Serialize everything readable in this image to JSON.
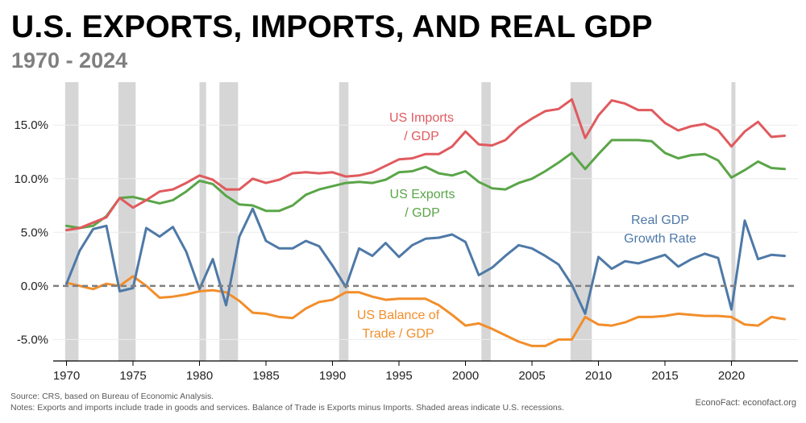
{
  "title": "U.S. EXPORTS, IMPORTS, AND REAL GDP",
  "subtitle": "1970 - 2024",
  "footer": {
    "source": "Source: CRS, based on Bureau of Economic Analysis.",
    "notes": "Notes: Exports and imports include trade in goods and services. Balance of Trade is Exports minus Imports. Shaded areas indicate U.S. recessions.",
    "credit": "EconoFact:  econofact.org"
  },
  "colors": {
    "imports": "#e05a5e",
    "exports": "#5aa548",
    "gdp": "#4e79a7",
    "balance": "#f28e2b",
    "recession": "#d6d6d6",
    "zero_line": "#7f7f7f"
  },
  "chart_data": {
    "type": "line",
    "xlim": [
      1969,
      2025
    ],
    "ylim": [
      -7,
      19
    ],
    "x_ticks": [
      1970,
      1975,
      1980,
      1985,
      1990,
      1995,
      2000,
      2005,
      2010,
      2015,
      2020
    ],
    "x_tick_labels": [
      "1970",
      "1975",
      "1980",
      "1985",
      "1990",
      "1995",
      "2000",
      "2005",
      "2010",
      "2015",
      "2020"
    ],
    "y_ticks": [
      -5,
      0,
      5,
      10,
      15
    ],
    "y_tick_labels": [
      "-5.0%",
      "0.0%",
      "5.0%",
      "10.0%",
      "15.0%"
    ],
    "grid": true,
    "recessions": [
      [
        1969.9,
        1970.9
      ],
      [
        1973.9,
        1975.2
      ],
      [
        1980.0,
        1980.5
      ],
      [
        1981.5,
        1982.9
      ],
      [
        1990.5,
        1991.2
      ],
      [
        2001.2,
        2001.9
      ],
      [
        2007.9,
        2009.5
      ],
      [
        2020.0,
        2020.3
      ]
    ],
    "x": [
      1970,
      1971,
      1972,
      1973,
      1974,
      1975,
      1976,
      1977,
      1978,
      1979,
      1980,
      1981,
      1982,
      1983,
      1984,
      1985,
      1986,
      1987,
      1988,
      1989,
      1990,
      1991,
      1992,
      1993,
      1994,
      1995,
      1996,
      1997,
      1998,
      1999,
      2000,
      2001,
      2002,
      2003,
      2004,
      2005,
      2006,
      2007,
      2008,
      2009,
      2010,
      2011,
      2012,
      2013,
      2014,
      2015,
      2016,
      2017,
      2018,
      2019,
      2020,
      2021,
      2022,
      2023,
      2024
    ],
    "series": [
      {
        "key": "imports",
        "label_lines": [
          "US Imports",
          "/ GDP"
        ],
        "values": [
          5.2,
          5.4,
          5.9,
          6.4,
          8.2,
          7.3,
          8.0,
          8.8,
          9.0,
          9.6,
          10.3,
          9.9,
          9.0,
          9.0,
          10.0,
          9.6,
          9.9,
          10.5,
          10.6,
          10.5,
          10.6,
          10.2,
          10.3,
          10.6,
          11.2,
          11.8,
          11.9,
          12.3,
          12.3,
          13.0,
          14.4,
          13.2,
          13.1,
          13.6,
          14.8,
          15.6,
          16.3,
          16.5,
          17.4,
          13.8,
          15.9,
          17.3,
          17.0,
          16.4,
          16.4,
          15.2,
          14.5,
          14.9,
          15.1,
          14.5,
          13.0,
          14.4,
          15.3,
          13.9,
          14.0
        ]
      },
      {
        "key": "exports",
        "label_lines": [
          "US Exports",
          "/ GDP"
        ],
        "values": [
          5.6,
          5.4,
          5.6,
          6.5,
          8.2,
          8.3,
          8.0,
          7.7,
          8.0,
          8.8,
          9.8,
          9.5,
          8.4,
          7.6,
          7.5,
          7.0,
          7.0,
          7.5,
          8.5,
          9.0,
          9.3,
          9.6,
          9.7,
          9.6,
          9.9,
          10.6,
          10.7,
          11.1,
          10.5,
          10.3,
          10.7,
          9.7,
          9.1,
          9.0,
          9.6,
          10.0,
          10.7,
          11.5,
          12.4,
          10.9,
          12.3,
          13.6,
          13.6,
          13.6,
          13.5,
          12.4,
          11.9,
          12.2,
          12.3,
          11.7,
          10.1,
          10.8,
          11.6,
          11.0,
          10.9
        ]
      },
      {
        "key": "gdp",
        "label_lines": [
          "Real GDP",
          "Growth Rate"
        ],
        "values": [
          0.2,
          3.3,
          5.3,
          5.6,
          -0.5,
          -0.2,
          5.4,
          4.6,
          5.5,
          3.2,
          -0.3,
          2.5,
          -1.8,
          4.6,
          7.2,
          4.2,
          3.5,
          3.5,
          4.2,
          3.7,
          1.9,
          -0.1,
          3.5,
          2.8,
          4.0,
          2.7,
          3.8,
          4.4,
          4.5,
          4.8,
          4.1,
          1.0,
          1.7,
          2.8,
          3.8,
          3.5,
          2.8,
          2.0,
          0.1,
          -2.6,
          2.7,
          1.6,
          2.3,
          2.1,
          2.5,
          2.9,
          1.8,
          2.5,
          3.0,
          2.6,
          -2.2,
          6.1,
          2.5,
          2.9,
          2.8
        ]
      },
      {
        "key": "balance",
        "label_lines": [
          "US Balance of",
          "Trade / GDP"
        ],
        "values": [
          0.3,
          0.0,
          -0.3,
          0.2,
          0.0,
          0.9,
          0.0,
          -1.1,
          -1.0,
          -0.8,
          -0.5,
          -0.4,
          -0.6,
          -1.4,
          -2.5,
          -2.6,
          -2.9,
          -3.0,
          -2.1,
          -1.5,
          -1.3,
          -0.6,
          -0.6,
          -1.0,
          -1.3,
          -1.2,
          -1.2,
          -1.2,
          -1.8,
          -2.7,
          -3.7,
          -3.5,
          -4.0,
          -4.6,
          -5.2,
          -5.6,
          -5.6,
          -5.0,
          -5.0,
          -2.9,
          -3.6,
          -3.7,
          -3.4,
          -2.9,
          -2.9,
          -2.8,
          -2.6,
          -2.7,
          -2.8,
          -2.8,
          -2.9,
          -3.6,
          -3.7,
          -2.9,
          -3.1
        ]
      }
    ]
  }
}
